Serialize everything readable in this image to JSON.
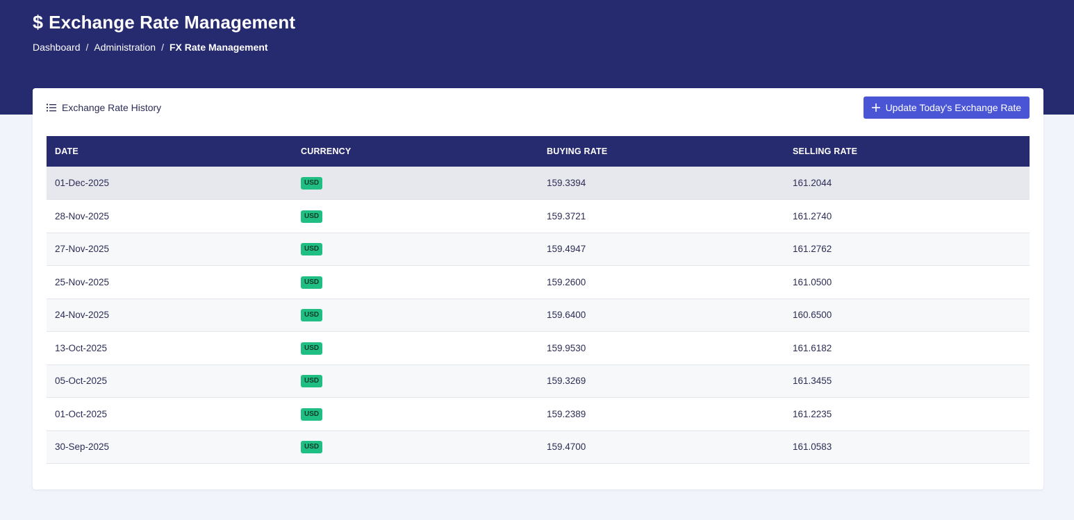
{
  "header": {
    "title_icon": "$",
    "title": "Exchange Rate Management",
    "breadcrumb": [
      "Dashboard",
      "Administration",
      "FX Rate Management"
    ],
    "separator": "/"
  },
  "card": {
    "title": "Exchange Rate History",
    "update_button_label": "Update Today's Exchange Rate"
  },
  "table": {
    "columns": [
      "DATE",
      "CURRENCY",
      "BUYING RATE",
      "SELLING RATE"
    ],
    "rows": [
      {
        "date": "01-Dec-2025",
        "currency": "USD",
        "buying": "159.3394",
        "selling": "161.2044"
      },
      {
        "date": "28-Nov-2025",
        "currency": "USD",
        "buying": "159.3721",
        "selling": "161.2740"
      },
      {
        "date": "27-Nov-2025",
        "currency": "USD",
        "buying": "159.4947",
        "selling": "161.2762"
      },
      {
        "date": "25-Nov-2025",
        "currency": "USD",
        "buying": "159.2600",
        "selling": "161.0500"
      },
      {
        "date": "24-Nov-2025",
        "currency": "USD",
        "buying": "159.6400",
        "selling": "160.6500"
      },
      {
        "date": "13-Oct-2025",
        "currency": "USD",
        "buying": "159.9530",
        "selling": "161.6182"
      },
      {
        "date": "05-Oct-2025",
        "currency": "USD",
        "buying": "159.3269",
        "selling": "161.3455"
      },
      {
        "date": "01-Oct-2025",
        "currency": "USD",
        "buying": "159.2389",
        "selling": "161.2235"
      },
      {
        "date": "30-Sep-2025",
        "currency": "USD",
        "buying": "159.4700",
        "selling": "161.0583"
      }
    ]
  },
  "colors": {
    "primary_dark": "#262a6e",
    "accent": "#4a55d6",
    "badge_green": "#1fbf83",
    "page_bg": "#f2f4fb"
  },
  "icons": {
    "title": "dollar-icon",
    "card_title": "list-icon",
    "button": "plus-icon"
  }
}
